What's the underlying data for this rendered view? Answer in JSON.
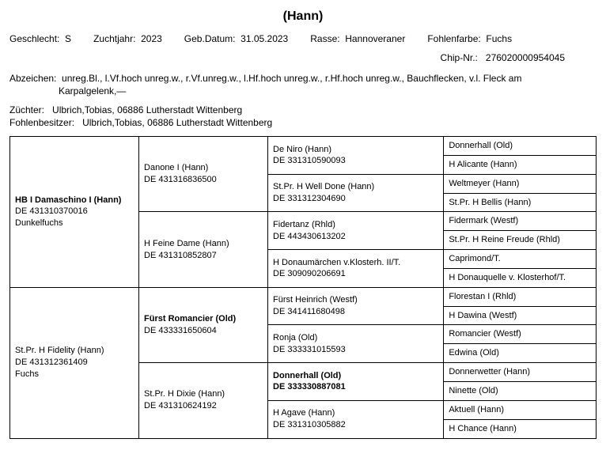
{
  "title": "(Hann)",
  "labels": {
    "sex": "Geschlecht:",
    "year": "Zuchtjahr:",
    "birth": "Geb.Datum:",
    "breed": "Rasse:",
    "color": "Fohlenfarbe:",
    "chip": "Chip-Nr.:",
    "markings": "Abzeichen:",
    "breeder": "Züchter:",
    "owner": "Fohlenbesitzer:"
  },
  "info": {
    "sex": "S",
    "year": "2023",
    "birth": "31.05.2023",
    "breed": "Hannoveraner",
    "color": "Fuchs",
    "chip": "276020000954045",
    "markings_l1": "unreg.Bl., l.Vf.hoch unreg.w., r.Vf.unreg.w., l.Hf.hoch unreg.w., r.Hf.hoch unreg.w., Bauchflecken, v.l. Fleck am",
    "markings_l2": "Karpalgelenk,—",
    "breeder": "Ulbrich,Tobias, 06886 Lutherstadt Wittenberg",
    "owner": "Ulbrich,Tobias, 06886 Lutherstadt Wittenberg"
  },
  "ped": {
    "g1": {
      "sire": {
        "name": "HB I Damaschino I (Hann)",
        "id": "DE 431310370016",
        "color": "Dunkelfuchs"
      },
      "dam": {
        "name": "St.Pr. H Fidelity (Hann)",
        "id": "DE 431312361409",
        "color": "Fuchs"
      }
    },
    "g2": {
      "ss": {
        "name": "Danone I (Hann)",
        "id": "DE 431316836500"
      },
      "sd": {
        "name": "H Feine Dame (Hann)",
        "id": "DE 431310852807"
      },
      "ds": {
        "name": "Fürst Romancier (Old)",
        "id": "DE 433331650604"
      },
      "dd": {
        "name": "St.Pr. H Dixie (Hann)",
        "id": "DE 431310624192"
      }
    },
    "g3": {
      "sss": {
        "name": "De Niro (Hann)",
        "id": "DE 331310590093"
      },
      "ssd": {
        "name": "St.Pr. H Well Done (Hann)",
        "id": "DE 331312304690"
      },
      "sds": {
        "name": "Fidertanz (Rhld)",
        "id": "DE 443430613202"
      },
      "sdd": {
        "name": "H Donaumärchen v.Klosterh. II/T.",
        "id": "DE 309090206691"
      },
      "dss": {
        "name": "Fürst Heinrich (Westf)",
        "id": "DE 341411680498"
      },
      "dsd": {
        "name": "Ronja (Old)",
        "id": "DE 333331015593"
      },
      "dds": {
        "name": "Donnerhall (Old)",
        "id": "DE 333330887081"
      },
      "ddd": {
        "name": "H Agave (Hann)",
        "id": "DE 331310305882"
      }
    },
    "g4": {
      "r0": "Donnerhall (Old)",
      "r1": "H Alicante (Hann)",
      "r2": "Weltmeyer (Hann)",
      "r3": "St.Pr. H Bellis (Hann)",
      "r4": "Fidermark (Westf)",
      "r5": "St.Pr. H Reine Freude (Rhld)",
      "r6": "Caprimond/T.",
      "r7": "H Donauquelle v. Klosterhof/T.",
      "r8": "Florestan I (Rhld)",
      "r9": "H Dawina (Westf)",
      "r10": "Romancier (Westf)",
      "r11": "Edwina (Old)",
      "r12": "Donnerwetter (Hann)",
      "r13": "Ninette (Old)",
      "r14": "Aktuell (Hann)",
      "r15": "H Chance (Hann)"
    }
  }
}
